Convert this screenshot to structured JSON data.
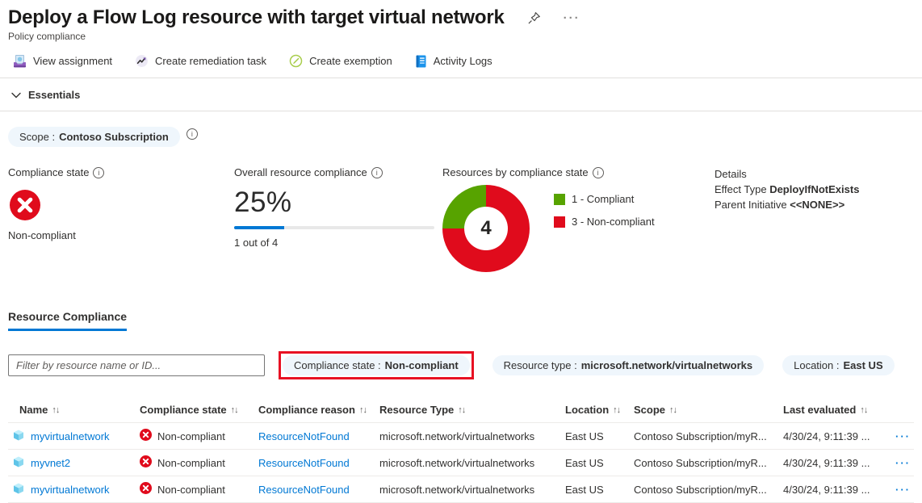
{
  "header": {
    "title": "Deploy a Flow Log resource with target virtual network",
    "subtitle": "Policy compliance"
  },
  "icons": {
    "info": "i",
    "sort": "↑↓",
    "more": "···",
    "row_menu": "···"
  },
  "toolbar": {
    "items": [
      {
        "label": "View assignment",
        "icon": "view-assignment-icon"
      },
      {
        "label": "Create remediation task",
        "icon": "remediation-task-icon"
      },
      {
        "label": "Create exemption",
        "icon": "exemption-icon"
      },
      {
        "label": "Activity Logs",
        "icon": "activity-logs-icon"
      }
    ]
  },
  "essentials": {
    "label": "Essentials"
  },
  "scope_pill": {
    "label": "Scope :",
    "value": "Contoso Subscription"
  },
  "metrics": {
    "compliance_state": {
      "title": "Compliance state",
      "value": "Non-compliant"
    },
    "overall": {
      "title": "Overall resource compliance",
      "percent_label": "25%",
      "percent_value": 25,
      "caption": "1 out of 4"
    },
    "resources": {
      "title": "Resources by compliance state",
      "center_value": "4",
      "legend": [
        {
          "label": "1 - Compliant",
          "color": "#57a300"
        },
        {
          "label": "3 - Non-compliant",
          "color": "#e00b1c"
        }
      ]
    },
    "details": {
      "title": "Details",
      "rows": [
        {
          "label": "Effect Type",
          "value": "DeployIfNotExists"
        },
        {
          "label": "Parent Initiative",
          "value": "<<NONE>>"
        }
      ]
    }
  },
  "chart_data": {
    "type": "pie",
    "donut": true,
    "title": "Resources by compliance state",
    "center_label": "4",
    "segments": [
      {
        "name": "Non-compliant",
        "value": 3,
        "color": "#e00b1c"
      },
      {
        "name": "Compliant",
        "value": 1,
        "color": "#57a300"
      }
    ],
    "legend_position": "right"
  },
  "tab": {
    "label": "Resource Compliance"
  },
  "filters": {
    "placeholder": "Filter by resource name or ID...",
    "pills": [
      {
        "label": "Compliance state :",
        "value": "Non-compliant",
        "highlighted": true
      },
      {
        "label": "Resource type :",
        "value": "microsoft.network/virtualnetworks",
        "highlighted": false
      },
      {
        "label": "Location :",
        "value": "East US",
        "highlighted": false
      }
    ]
  },
  "table": {
    "columns": [
      "Name",
      "Compliance state",
      "Compliance reason",
      "Resource Type",
      "Location",
      "Scope",
      "Last evaluated"
    ],
    "rows": [
      {
        "name": "myvirtualnetwork",
        "state": "Non-compliant",
        "reason": "ResourceNotFound",
        "type": "microsoft.network/virtualnetworks",
        "location": "East US",
        "scope": "Contoso Subscription/myR...",
        "last_evaluated": "4/30/24, 9:11:39 ..."
      },
      {
        "name": "myvnet2",
        "state": "Non-compliant",
        "reason": "ResourceNotFound",
        "type": "microsoft.network/virtualnetworks",
        "location": "East US",
        "scope": "Contoso Subscription/myR...",
        "last_evaluated": "4/30/24, 9:11:39 ..."
      },
      {
        "name": "myvirtualnetwork",
        "state": "Non-compliant",
        "reason": "ResourceNotFound",
        "type": "microsoft.network/virtualnetworks",
        "location": "East US",
        "scope": "Contoso Subscription/myR...",
        "last_evaluated": "4/30/24, 9:11:39 ..."
      }
    ]
  },
  "colors": {
    "accent_blue": "#0078d4",
    "non_compliant_red": "#e00b1c",
    "compliant_green": "#57a300",
    "pill_bg": "#eff6fc",
    "highlight_border": "#e81123"
  }
}
